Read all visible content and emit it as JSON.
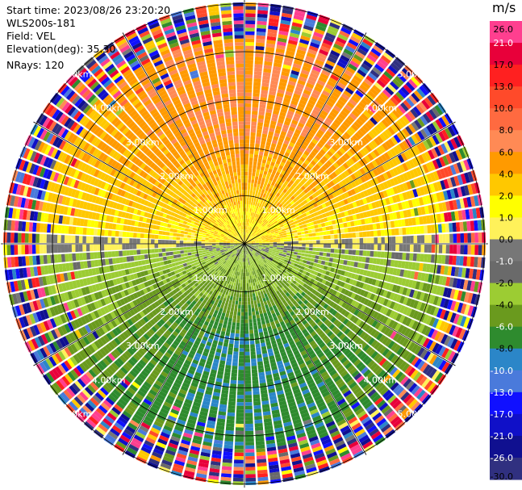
{
  "info": {
    "start_time": "Start time: 2023/08/26 23:20:20",
    "instrument": "WLS200s-181",
    "field": "Field: VEL",
    "elevation": "Elevation(deg): 35.30",
    "nrays": "NRays: 120"
  },
  "colorbar": {
    "unit": "m/s",
    "ticks": [
      "26.0",
      "21.0",
      "17.0",
      "13.0",
      "10.0",
      "8.0",
      "6.0",
      "4.0",
      "2.0",
      "1.0",
      "0.0",
      "-1.0",
      "-2.0",
      "-4.0",
      "-6.0",
      "-8.0",
      "-10.0",
      "-13.0",
      "-17.0",
      "-21.0",
      "-26.0",
      "-30.0"
    ],
    "colors": [
      "#ff3f8f",
      "#e8003a",
      "#ff2020",
      "#ff4a2a",
      "#ff6a40",
      "#ff8a55",
      "#ff9a00",
      "#ffc800",
      "#ffff00",
      "#fff15a",
      "#777777",
      "#6a6a6a",
      "#9ccc33",
      "#6a9a1e",
      "#2e8b2e",
      "#2b86c8",
      "#4a7adb",
      "#1010ff",
      "#1010c8",
      "#101090",
      "#303080"
    ],
    "label_colors": [
      "#000000",
      "#ffffff",
      "#000000",
      "#000000",
      "#000000",
      "#000000",
      "#000000",
      "#000000",
      "#000000",
      "#000000",
      "#000000",
      "#ffffff",
      "#000000",
      "#000000",
      "#ffffff",
      "#000000",
      "#ffffff",
      "#ffffff",
      "#ffffff",
      "#ffffff",
      "#ffffff",
      "#000000"
    ]
  },
  "chart_data": {
    "type": "heatmap",
    "projection": "PPI (plan position indicator)",
    "field": "VEL",
    "units": "m/s",
    "range_rings_km": [
      1.0,
      2.0,
      3.0,
      4.0,
      5.0
    ],
    "ring_labels": [
      "1.00km",
      "2.00km",
      "3.00km",
      "4.00km",
      "5.00km"
    ],
    "radial_spokes_deg": [
      0,
      30,
      60,
      90,
      120,
      150,
      180,
      210,
      240,
      270,
      300,
      330
    ],
    "max_range_km": 5.7,
    "nrays": 120,
    "pattern": "positive velocities (yellow/orange) to the north, negative (green/blue) to the south; noisy multi-colored returns beyond ~4 km"
  }
}
